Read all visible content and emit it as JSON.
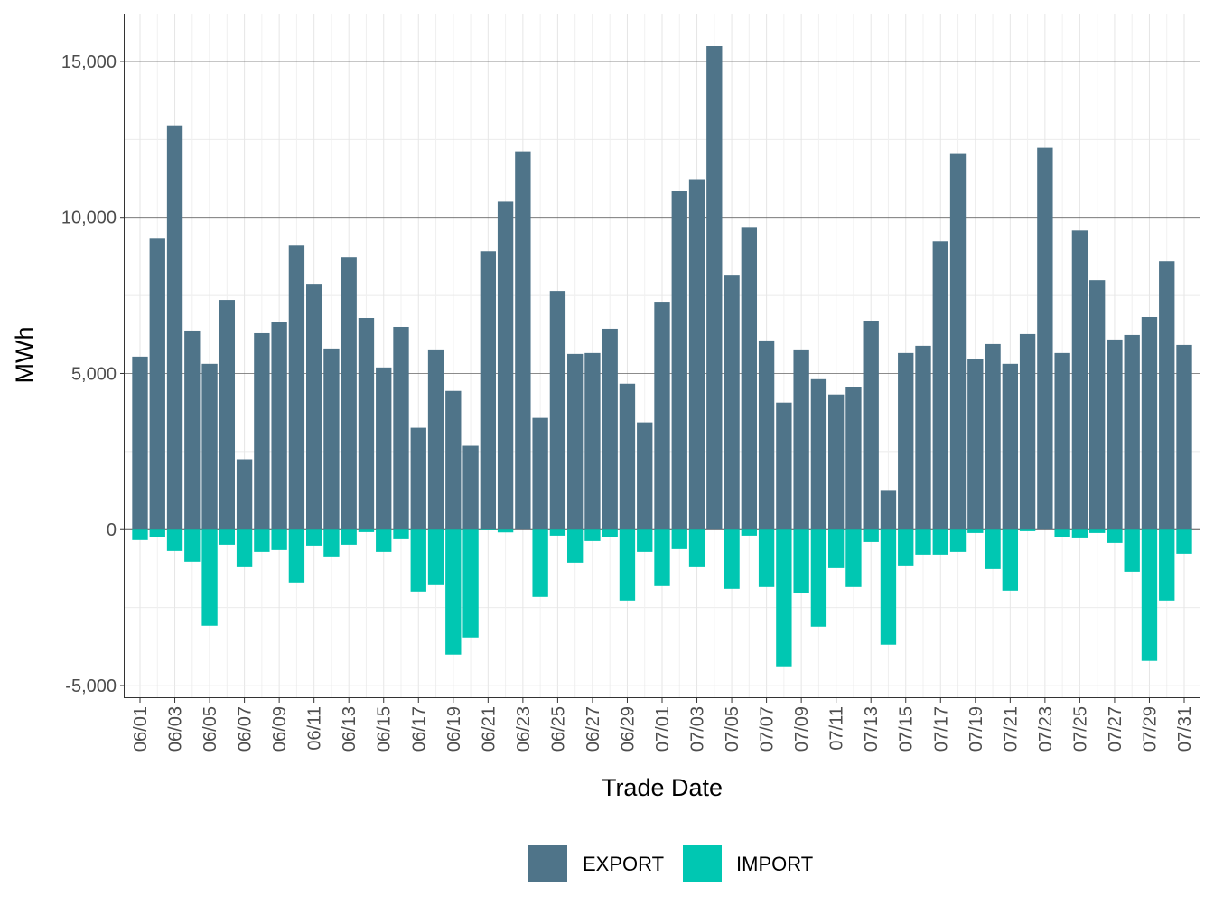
{
  "chart_data": {
    "type": "bar",
    "stacked": true,
    "xlabel": "Trade Date",
    "ylabel": "MWh",
    "ylim": [
      -5376,
      16503
    ],
    "yticks": [
      -5000,
      0,
      5000,
      10000,
      15000
    ],
    "ytick_labels": [
      "-5,000",
      "0",
      "5,000",
      "10,000",
      "15,000"
    ],
    "grid": true,
    "legend_position": "bottom",
    "categories": [
      "06/01",
      "06/02",
      "06/03",
      "06/04",
      "06/05",
      "06/06",
      "06/07",
      "06/08",
      "06/09",
      "06/10",
      "06/11",
      "06/12",
      "06/13",
      "06/14",
      "06/15",
      "06/16",
      "06/17",
      "06/18",
      "06/19",
      "06/20",
      "06/21",
      "06/22",
      "06/23",
      "06/24",
      "06/25",
      "06/26",
      "06/27",
      "06/28",
      "06/29",
      "06/30",
      "07/01",
      "07/02",
      "07/03",
      "07/04",
      "07/05",
      "07/06",
      "07/07",
      "07/08",
      "07/09",
      "07/10",
      "07/11",
      "07/12",
      "07/13",
      "07/14",
      "07/15",
      "07/16",
      "07/17",
      "07/18",
      "07/19",
      "07/20",
      "07/21",
      "07/22",
      "07/23",
      "07/24",
      "07/25",
      "07/26",
      "07/27",
      "07/28",
      "07/29",
      "07/30",
      "07/31"
    ],
    "xtick_labels": [
      "06/01",
      "06/03",
      "06/05",
      "06/07",
      "06/09",
      "06/11",
      "06/13",
      "06/15",
      "06/17",
      "06/19",
      "06/21",
      "06/23",
      "06/25",
      "06/27",
      "06/29",
      "07/01",
      "07/03",
      "07/05",
      "07/07",
      "07/09",
      "07/11",
      "07/13",
      "07/15",
      "07/17",
      "07/19",
      "07/21",
      "07/23",
      "07/25",
      "07/27",
      "07/29",
      "07/31"
    ],
    "series": [
      {
        "name": "EXPORT",
        "color": "#4f7489",
        "values": [
          5538,
          9317,
          12952,
          6375,
          5308,
          7356,
          2250,
          6288,
          6635,
          9115,
          7875,
          5798,
          8712,
          6779,
          5192,
          6490,
          3260,
          5769,
          4442,
          2683,
          8913,
          10500,
          12115,
          3577,
          7644,
          5625,
          5654,
          6433,
          4673,
          3433,
          7298,
          10846,
          11221,
          15490,
          8135,
          9692,
          6058,
          4067,
          5769,
          4817,
          4327,
          4558,
          6692,
          1240,
          5654,
          5885,
          9231,
          12058,
          5452,
          5942,
          5308,
          6260,
          12231,
          5654,
          9577,
          7990,
          6087,
          6231,
          6808,
          8596,
          5913
        ]
      },
      {
        "name": "IMPORT",
        "color": "#00c7b2",
        "values": [
          -335,
          -250,
          -684,
          -1030,
          -3083,
          -482,
          -1205,
          -713,
          -655,
          -1695,
          -511,
          -886,
          -482,
          -77,
          -713,
          -308,
          -1985,
          -1782,
          -4008,
          -3459,
          -20,
          -87,
          0,
          -2158,
          -193,
          -1060,
          -366,
          -250,
          -2274,
          -713,
          -1811,
          -626,
          -1205,
          0,
          -1898,
          -193,
          -1840,
          -4384,
          -2043,
          -3112,
          -1234,
          -1840,
          -396,
          -3690,
          -1176,
          -800,
          -800,
          -713,
          -106,
          -1263,
          -1956,
          -48,
          0,
          -250,
          -280,
          -106,
          -424,
          -1350,
          -4210,
          -2274,
          -771
        ]
      }
    ]
  }
}
